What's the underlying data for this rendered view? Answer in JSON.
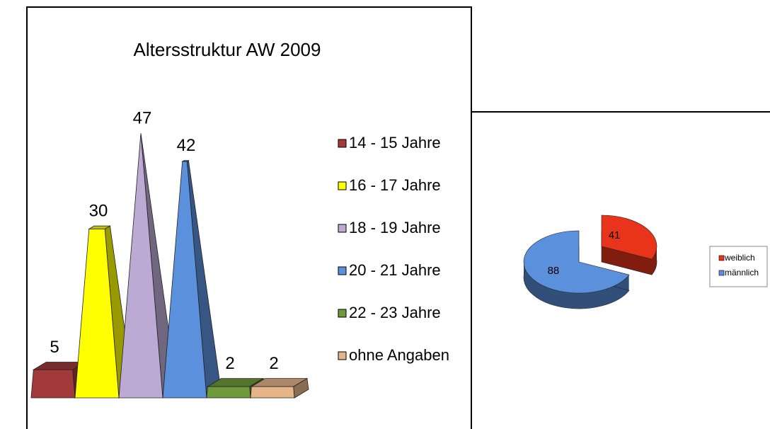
{
  "chart_data": [
    {
      "type": "bar",
      "title": "Altersstruktur  AW 2009",
      "categories": [
        "14 - 15 Jahre",
        "16 - 17 Jahre",
        "18 - 19 Jahre",
        "20 - 21 Jahre",
        "22 - 23 Jahre",
        "ohne Angaben"
      ],
      "values": [
        5,
        30,
        47,
        42,
        2,
        2
      ],
      "colors": [
        "#a33a3a",
        "#ffff00",
        "#bcaad4",
        "#5b90dc",
        "#6f9a3c",
        "#e6b489"
      ],
      "legend": "right"
    },
    {
      "type": "pie",
      "categories": [
        "weiblich",
        "männlich"
      ],
      "values": [
        41,
        88
      ],
      "colors": [
        "#e8341a",
        "#5b90dc"
      ],
      "legend": "right"
    }
  ]
}
